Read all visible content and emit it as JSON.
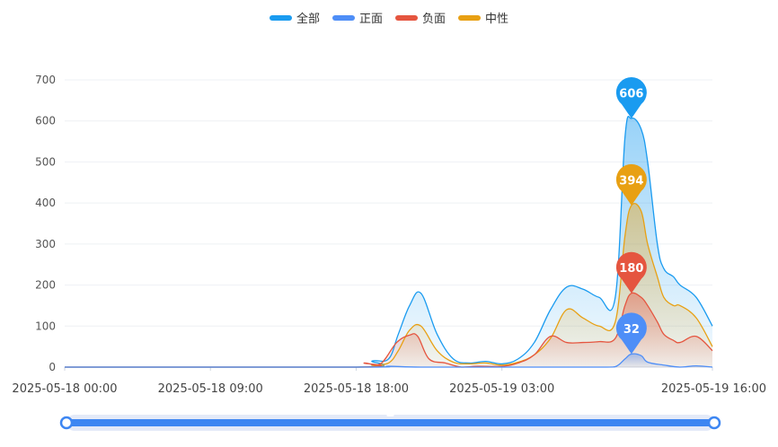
{
  "legend": [
    {
      "key": "all",
      "label": "全部",
      "color": "#1a9bf0"
    },
    {
      "key": "pos",
      "label": "正面",
      "color": "#4e8ef7"
    },
    {
      "key": "neg",
      "label": "负面",
      "color": "#e5553f"
    },
    {
      "key": "neu",
      "label": "中性",
      "color": "#e8a013"
    }
  ],
  "chart_data": {
    "type": "area",
    "x_unit": "hour",
    "x_tick_labels": [
      "2025-05-18 00:00",
      "2025-05-18 09:00",
      "2025-05-18 18:00",
      "2025-05-19 03:00",
      "2025-05-19 16:00"
    ],
    "x_tick_hours": [
      0,
      9,
      18,
      27,
      40
    ],
    "y_ticks": [
      0,
      100,
      200,
      300,
      400,
      500,
      600,
      700
    ],
    "ylim": [
      0,
      700
    ],
    "xlim": [
      0,
      40
    ],
    "grid": true,
    "legend_position": "top-center",
    "series": [
      {
        "key": "all",
        "name": "全部",
        "color": "#1a9bf0",
        "points": [
          [
            0,
            0
          ],
          [
            18,
            0
          ],
          [
            19,
            15
          ],
          [
            20,
            20
          ],
          [
            20.6,
            80
          ],
          [
            21.3,
            150
          ],
          [
            22,
            180
          ],
          [
            23,
            80
          ],
          [
            24,
            20
          ],
          [
            25,
            10
          ],
          [
            26,
            14
          ],
          [
            27,
            8
          ],
          [
            28,
            20
          ],
          [
            29,
            60
          ],
          [
            30,
            140
          ],
          [
            31,
            195
          ],
          [
            32,
            190
          ],
          [
            33,
            170
          ],
          [
            34,
            170
          ],
          [
            34.6,
            560
          ],
          [
            35,
            606
          ],
          [
            35.6,
            580
          ],
          [
            36,
            500
          ],
          [
            36.6,
            300
          ],
          [
            37,
            240
          ],
          [
            37.6,
            220
          ],
          [
            38,
            200
          ],
          [
            39,
            170
          ],
          [
            40,
            100
          ]
        ]
      },
      {
        "key": "neu",
        "name": "中性",
        "color": "#e8a013",
        "points": [
          [
            0,
            0
          ],
          [
            18,
            0
          ],
          [
            19,
            5
          ],
          [
            20,
            10
          ],
          [
            20.6,
            40
          ],
          [
            21.3,
            90
          ],
          [
            22,
            100
          ],
          [
            23,
            40
          ],
          [
            24,
            12
          ],
          [
            25,
            8
          ],
          [
            26,
            10
          ],
          [
            27,
            5
          ],
          [
            28,
            12
          ],
          [
            29,
            30
          ],
          [
            30,
            70
          ],
          [
            31,
            140
          ],
          [
            32,
            120
          ],
          [
            33,
            100
          ],
          [
            34,
            110
          ],
          [
            34.6,
            320
          ],
          [
            35,
            394
          ],
          [
            35.6,
            380
          ],
          [
            36,
            300
          ],
          [
            36.6,
            220
          ],
          [
            37,
            170
          ],
          [
            37.6,
            150
          ],
          [
            38,
            150
          ],
          [
            39,
            120
          ],
          [
            40,
            50
          ]
        ]
      },
      {
        "key": "neg",
        "name": "负面",
        "color": "#e5553f",
        "points": [
          [
            0,
            0
          ],
          [
            18,
            0
          ],
          [
            18.5,
            10
          ],
          [
            19.5,
            8
          ],
          [
            20.5,
            60
          ],
          [
            21.3,
            78
          ],
          [
            21.8,
            75
          ],
          [
            22.5,
            20
          ],
          [
            23.5,
            10
          ],
          [
            24.5,
            0
          ],
          [
            25.5,
            2
          ],
          [
            27,
            2
          ],
          [
            28,
            10
          ],
          [
            29,
            30
          ],
          [
            30,
            75
          ],
          [
            31,
            60
          ],
          [
            32,
            60
          ],
          [
            33,
            62
          ],
          [
            34,
            70
          ],
          [
            34.6,
            150
          ],
          [
            35,
            180
          ],
          [
            35.6,
            170
          ],
          [
            36,
            150
          ],
          [
            36.6,
            110
          ],
          [
            37,
            80
          ],
          [
            37.6,
            65
          ],
          [
            38,
            60
          ],
          [
            39,
            75
          ],
          [
            40,
            40
          ]
        ]
      },
      {
        "key": "pos",
        "name": "正面",
        "color": "#4e8ef7",
        "points": [
          [
            0,
            0
          ],
          [
            18,
            0
          ],
          [
            20,
            2
          ],
          [
            22,
            0
          ],
          [
            27,
            0
          ],
          [
            33,
            0
          ],
          [
            34,
            1
          ],
          [
            34.6,
            20
          ],
          [
            35,
            32
          ],
          [
            35.6,
            28
          ],
          [
            36,
            12
          ],
          [
            37,
            5
          ],
          [
            38,
            0
          ],
          [
            39,
            3
          ],
          [
            40,
            0
          ]
        ]
      }
    ],
    "markers": [
      {
        "series": "all",
        "x": 35,
        "value": 606,
        "label": "606",
        "color": "#1a9bf0"
      },
      {
        "series": "neu",
        "x": 35,
        "value": 394,
        "label": "394",
        "color": "#e8a013"
      },
      {
        "series": "neg",
        "x": 35,
        "value": 180,
        "label": "180",
        "color": "#e5553f"
      },
      {
        "series": "pos",
        "x": 35,
        "value": 32,
        "label": "32",
        "color": "#4e8ef7"
      }
    ]
  },
  "zoom_slider": {
    "start": 0,
    "end": 100
  }
}
